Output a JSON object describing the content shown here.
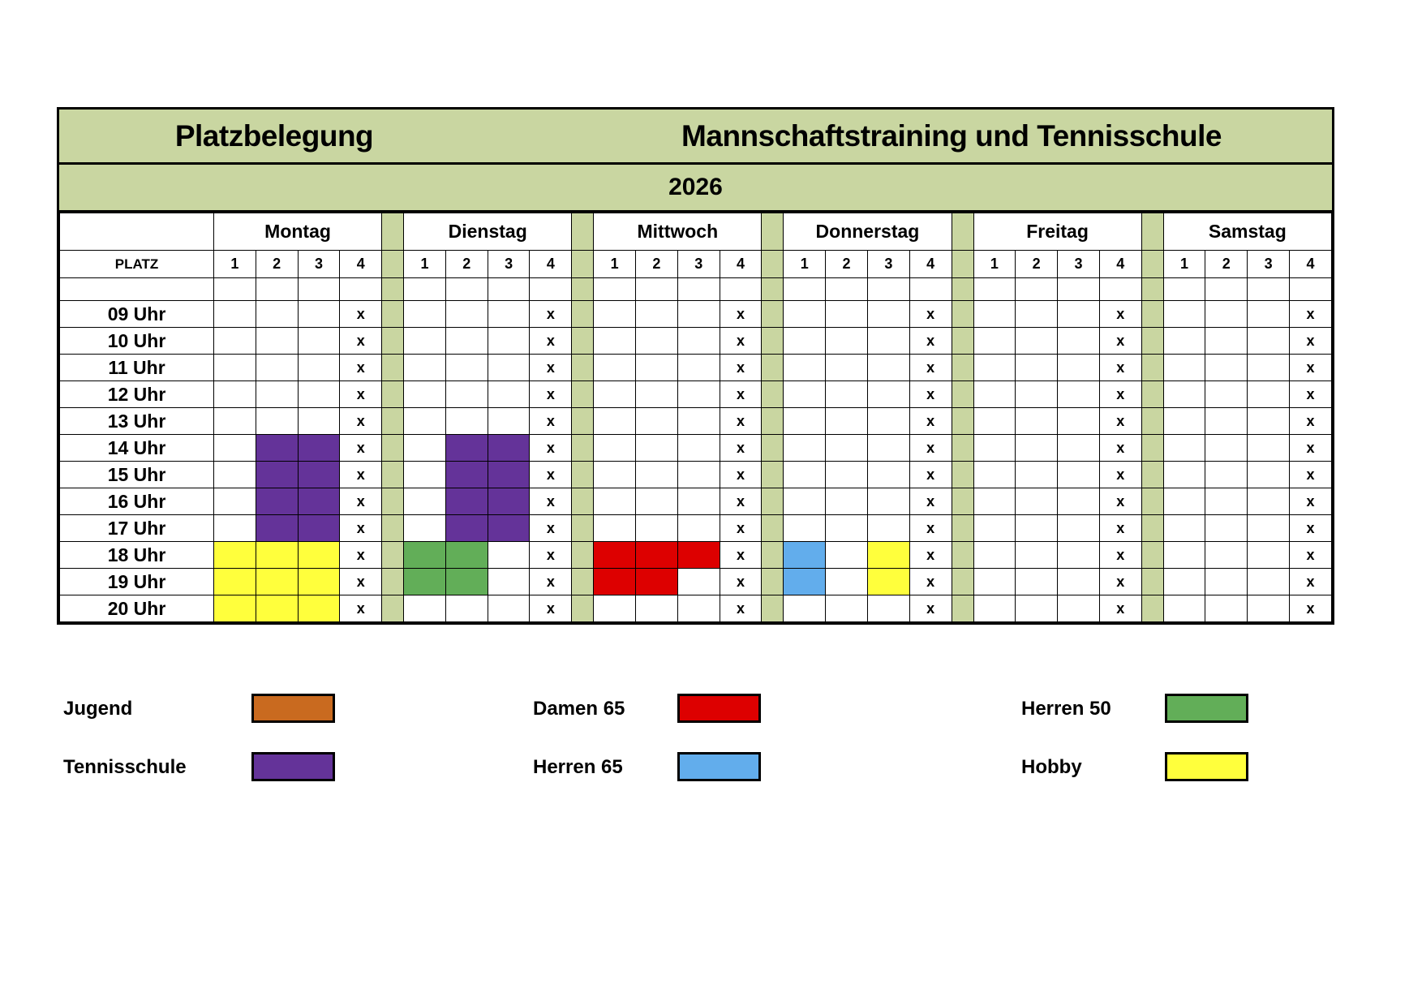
{
  "header": {
    "title_left": "Platzbelegung",
    "title_right": "Mannschaftstraining und Tennisschule",
    "year": "2026"
  },
  "table": {
    "platz_label": "PLATZ",
    "days": [
      "Montag",
      "Dienstag",
      "Mittwoch",
      "Donnerstag",
      "Freitag",
      "Samstag"
    ],
    "courts": [
      "1",
      "2",
      "3",
      "4"
    ],
    "colors": {
      "jugend": "#c96a1f",
      "tennisschule": "#643399",
      "damen65": "#dd0000",
      "herren65": "#62adec",
      "herren50": "#62ae58",
      "hobby": "#ffff3c",
      "separator": "#c9d6a1"
    },
    "rows": [
      {
        "time": "09 Uhr",
        "cells": [
          [
            "",
            "",
            "",
            "x"
          ],
          [
            "",
            "",
            "",
            "x"
          ],
          [
            "",
            "",
            "",
            "x"
          ],
          [
            "",
            "",
            "",
            "x"
          ],
          [
            "",
            "",
            "",
            "x"
          ],
          [
            "",
            "",
            "",
            "x"
          ]
        ]
      },
      {
        "time": "10 Uhr",
        "cells": [
          [
            "",
            "",
            "",
            "x"
          ],
          [
            "",
            "",
            "",
            "x"
          ],
          [
            "",
            "",
            "",
            "x"
          ],
          [
            "",
            "",
            "",
            "x"
          ],
          [
            "",
            "",
            "",
            "x"
          ],
          [
            "",
            "",
            "",
            "x"
          ]
        ]
      },
      {
        "time": "11 Uhr",
        "cells": [
          [
            "",
            "",
            "",
            "x"
          ],
          [
            "",
            "",
            "",
            "x"
          ],
          [
            "",
            "",
            "",
            "x"
          ],
          [
            "",
            "",
            "",
            "x"
          ],
          [
            "",
            "",
            "",
            "x"
          ],
          [
            "",
            "",
            "",
            "x"
          ]
        ]
      },
      {
        "time": "12 Uhr",
        "cells": [
          [
            "",
            "",
            "",
            "x"
          ],
          [
            "",
            "",
            "",
            "x"
          ],
          [
            "",
            "",
            "",
            "x"
          ],
          [
            "",
            "",
            "",
            "x"
          ],
          [
            "",
            "",
            "",
            "x"
          ],
          [
            "",
            "",
            "",
            "x"
          ]
        ]
      },
      {
        "time": "13 Uhr",
        "cells": [
          [
            "",
            "",
            "",
            "x"
          ],
          [
            "",
            "",
            "",
            "x"
          ],
          [
            "",
            "",
            "",
            "x"
          ],
          [
            "",
            "",
            "",
            "x"
          ],
          [
            "",
            "",
            "",
            "x"
          ],
          [
            "",
            "",
            "",
            "x"
          ]
        ]
      },
      {
        "time": "14 Uhr",
        "cells": [
          [
            "",
            "tennisschule",
            "tennisschule",
            "x"
          ],
          [
            "",
            "tennisschule",
            "tennisschule",
            "x"
          ],
          [
            "",
            "",
            "",
            "x"
          ],
          [
            "",
            "",
            "",
            "x"
          ],
          [
            "",
            "",
            "",
            "x"
          ],
          [
            "",
            "",
            "",
            "x"
          ]
        ]
      },
      {
        "time": "15 Uhr",
        "cells": [
          [
            "",
            "tennisschule",
            "tennisschule",
            "x"
          ],
          [
            "",
            "tennisschule",
            "tennisschule",
            "x"
          ],
          [
            "",
            "",
            "",
            "x"
          ],
          [
            "",
            "",
            "",
            "x"
          ],
          [
            "",
            "",
            "",
            "x"
          ],
          [
            "",
            "",
            "",
            "x"
          ]
        ]
      },
      {
        "time": "16 Uhr",
        "cells": [
          [
            "",
            "tennisschule",
            "tennisschule",
            "x"
          ],
          [
            "",
            "tennisschule",
            "tennisschule",
            "x"
          ],
          [
            "",
            "",
            "",
            "x"
          ],
          [
            "",
            "",
            "",
            "x"
          ],
          [
            "",
            "",
            "",
            "x"
          ],
          [
            "",
            "",
            "",
            "x"
          ]
        ]
      },
      {
        "time": "17 Uhr",
        "cells": [
          [
            "",
            "tennisschule",
            "tennisschule",
            "x"
          ],
          [
            "",
            "tennisschule",
            "tennisschule",
            "x"
          ],
          [
            "",
            "",
            "",
            "x"
          ],
          [
            "",
            "",
            "",
            "x"
          ],
          [
            "",
            "",
            "",
            "x"
          ],
          [
            "",
            "",
            "",
            "x"
          ]
        ]
      },
      {
        "time": "18 Uhr",
        "cells": [
          [
            "hobby",
            "hobby",
            "hobby",
            "x"
          ],
          [
            "herren50",
            "herren50",
            "",
            "x"
          ],
          [
            "damen65",
            "damen65",
            "damen65",
            "x"
          ],
          [
            "herren65",
            "",
            "hobby",
            "x"
          ],
          [
            "",
            "",
            "",
            "x"
          ],
          [
            "",
            "",
            "",
            "x"
          ]
        ]
      },
      {
        "time": "19 Uhr",
        "cells": [
          [
            "hobby",
            "hobby",
            "hobby",
            "x"
          ],
          [
            "herren50",
            "herren50",
            "",
            "x"
          ],
          [
            "damen65",
            "damen65",
            "",
            "x"
          ],
          [
            "herren65",
            "",
            "hobby",
            "x"
          ],
          [
            "",
            "",
            "",
            "x"
          ],
          [
            "",
            "",
            "",
            "x"
          ]
        ]
      },
      {
        "time": "20 Uhr",
        "cells": [
          [
            "hobby",
            "hobby",
            "hobby",
            "x"
          ],
          [
            "",
            "",
            "",
            "x"
          ],
          [
            "",
            "",
            "",
            "x"
          ],
          [
            "",
            "",
            "",
            "x"
          ],
          [
            "",
            "",
            "",
            "x"
          ],
          [
            "",
            "",
            "",
            "x"
          ]
        ]
      }
    ]
  },
  "legend": [
    {
      "label": "Jugend",
      "color": "#c96a1f"
    },
    {
      "label": "Tennisschule",
      "color": "#643399"
    },
    {
      "label": "Damen 65",
      "color": "#dd0000"
    },
    {
      "label": "Herren 65",
      "color": "#62adec"
    },
    {
      "label": "Herren 50",
      "color": "#62ae58"
    },
    {
      "label": "Hobby",
      "color": "#ffff3c"
    }
  ]
}
